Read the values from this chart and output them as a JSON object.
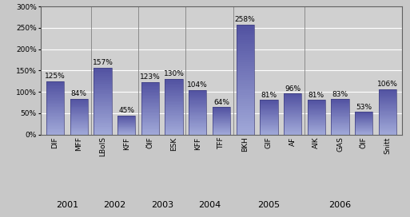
{
  "categories": [
    "DIF",
    "MFF",
    "LBoIS",
    "KFF",
    "ÖIF",
    "ESK",
    "KFF",
    "TFF",
    "BKH",
    "GIF",
    "AF",
    "AIK",
    "GAS",
    "ÖIF",
    "Snitt"
  ],
  "values": [
    125,
    84,
    157,
    45,
    123,
    130,
    104,
    64,
    258,
    81,
    96,
    81,
    83,
    53,
    106
  ],
  "group_separators": [
    1.5,
    3.5,
    5.5,
    7.5,
    10.5
  ],
  "year_labels": [
    "2001",
    "2002",
    "2003",
    "2004",
    "2005",
    "2006"
  ],
  "year_centers": [
    0.5,
    2.5,
    4.5,
    6.5,
    9.0,
    12.0
  ],
  "bar_color_light": "#a0a8d8",
  "bar_color_dark": "#5050a0",
  "bar_edge_color": "#404080",
  "background_color": "#c8c8c8",
  "plot_bg_color": "#d0d0d0",
  "grid_color": "#ffffff",
  "ylim": [
    0,
    300
  ],
  "yticks": [
    0,
    50,
    100,
    150,
    200,
    250,
    300
  ],
  "ytick_labels": [
    "0%",
    "50%",
    "100%",
    "150%",
    "200%",
    "250%",
    "300%"
  ],
  "label_fontsize": 6.5,
  "value_fontsize": 6.5,
  "year_fontsize": 8,
  "bar_width": 0.75
}
